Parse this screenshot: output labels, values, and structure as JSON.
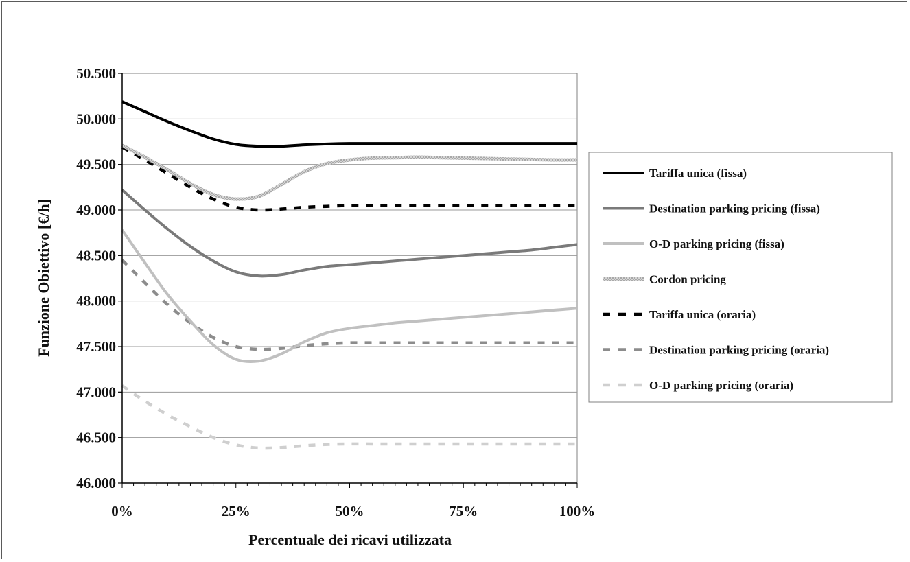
{
  "chart_data": {
    "type": "line",
    "title": "",
    "xlabel": "Percentuale dei ricavi utilizzata",
    "ylabel": "Funzione Obiettivo [€/h]",
    "xlim": [
      0,
      100
    ],
    "ylim": [
      46000,
      50500
    ],
    "x_ticks": [
      0,
      25,
      50,
      75,
      100
    ],
    "x_tick_labels": [
      "0%",
      "25%",
      "50%",
      "75%",
      "100%"
    ],
    "y_ticks": [
      46000,
      46500,
      47000,
      47500,
      48000,
      48500,
      49000,
      49500,
      50000,
      50500
    ],
    "y_tick_labels": [
      "46.000",
      "46.500",
      "47.000",
      "47.500",
      "48.000",
      "48.500",
      "49.000",
      "49.500",
      "50.000",
      "50.500"
    ],
    "grid": "horizontal",
    "legend_position": "right",
    "x": [
      0,
      5,
      10,
      15,
      20,
      25,
      30,
      35,
      40,
      45,
      50,
      55,
      60,
      65,
      70,
      75,
      80,
      85,
      90,
      95,
      100
    ],
    "series": [
      {
        "name": "Tariffa unica (fissa)",
        "color": "#000000",
        "style": "solid",
        "values": [
          50190,
          50080,
          49970,
          49870,
          49780,
          49720,
          49700,
          49700,
          49715,
          49725,
          49730,
          49730,
          49730,
          49730,
          49730,
          49730,
          49730,
          49730,
          49730,
          49730,
          49730
        ]
      },
      {
        "name": "Destination parking pricing (fissa)",
        "color": "#7a7a7a",
        "style": "solid",
        "values": [
          49220,
          49000,
          48790,
          48600,
          48440,
          48320,
          48275,
          48290,
          48340,
          48380,
          48400,
          48420,
          48440,
          48460,
          48480,
          48500,
          48520,
          48540,
          48560,
          48590,
          48620
        ]
      },
      {
        "name": "O-D parking pricing (fissa)",
        "color": "#c0c0c0",
        "style": "solid",
        "values": [
          48780,
          48420,
          48070,
          47780,
          47520,
          47360,
          47340,
          47420,
          47550,
          47650,
          47700,
          47730,
          47760,
          47780,
          47800,
          47820,
          47840,
          47860,
          47880,
          47900,
          47920
        ]
      },
      {
        "name": "Cordon pricing",
        "color": "#bdbdbd",
        "style": "textured",
        "values": [
          49710,
          49580,
          49440,
          49290,
          49170,
          49120,
          49150,
          49280,
          49420,
          49510,
          49550,
          49570,
          49575,
          49580,
          49575,
          49570,
          49565,
          49560,
          49555,
          49550,
          49550
        ]
      },
      {
        "name": "Tariffa unica (oraria)",
        "color": "#000000",
        "style": "dashed",
        "values": [
          49690,
          49550,
          49400,
          49250,
          49120,
          49030,
          49000,
          49010,
          49030,
          49040,
          49050,
          49050,
          49050,
          49050,
          49050,
          49050,
          49050,
          49050,
          49050,
          49050,
          49050
        ]
      },
      {
        "name": "Destination parking pricing (oraria)",
        "color": "#8c8c8c",
        "style": "dashed",
        "values": [
          48450,
          48200,
          47960,
          47760,
          47600,
          47500,
          47470,
          47480,
          47510,
          47530,
          47540,
          47540,
          47540,
          47540,
          47540,
          47540,
          47540,
          47540,
          47540,
          47540,
          47540
        ]
      },
      {
        "name": "O-D parking pricing (oraria)",
        "color": "#cfcfcf",
        "style": "dashed",
        "values": [
          47070,
          46900,
          46750,
          46620,
          46500,
          46420,
          46385,
          46390,
          46410,
          46425,
          46430,
          46430,
          46430,
          46430,
          46430,
          46430,
          46430,
          46430,
          46430,
          46430,
          46430
        ]
      }
    ]
  }
}
